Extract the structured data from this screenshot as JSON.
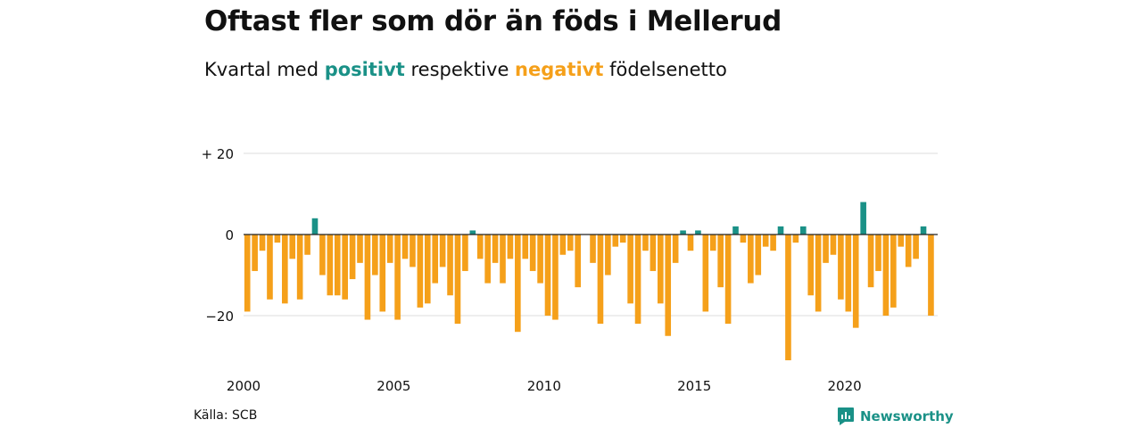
{
  "title": "Oftast fler som dör än föds i Mellerud",
  "subtitle": {
    "part1": "Kvartal med ",
    "positive": "positivt",
    "part2": " respektive ",
    "negative": "negativt",
    "part3": " födelsenetto"
  },
  "source": "Källa: SCB",
  "brand": "Newsworthy",
  "colors": {
    "positive": "#1a9187",
    "negative": "#f5a01a",
    "grid": "#dddddd",
    "zero": "#222222"
  },
  "chart_data": {
    "type": "bar",
    "ylim": [
      -31,
      20
    ],
    "y_ticks": [
      {
        "value": 20,
        "label": "+ 20"
      },
      {
        "value": 0,
        "label": "0"
      },
      {
        "value": -20,
        "label": "−20"
      }
    ],
    "x_ticks": [
      {
        "value": 2000,
        "label": "2000"
      },
      {
        "value": 2005,
        "label": "2005"
      },
      {
        "value": 2010,
        "label": "2010"
      },
      {
        "value": 2015,
        "label": "2015"
      },
      {
        "value": 2020,
        "label": "2020"
      }
    ],
    "grid": true,
    "series": [
      {
        "values": [
          -19,
          -9,
          -4,
          -16,
          -2,
          -17,
          -6,
          -16,
          -5,
          4,
          -10,
          -15,
          -15,
          -16,
          -11,
          -7,
          -21,
          -10,
          -19,
          -7,
          -21,
          -6,
          -8,
          -18,
          -17,
          -12,
          -8,
          -15,
          -22,
          -9,
          1,
          -6,
          -12,
          -7,
          -12,
          -6,
          -24,
          -6,
          -9,
          -12,
          -20,
          -21,
          -5,
          -4,
          -13,
          0,
          -7,
          -22,
          -10,
          -3,
          -2,
          -17,
          -22,
          -4,
          -9,
          -17,
          -25,
          -7,
          1,
          -4,
          1,
          -19,
          -4,
          -13,
          -22,
          2,
          -2,
          -12,
          -10,
          -3,
          -4,
          2,
          -31,
          -2,
          2,
          -15,
          -19,
          -7,
          -5,
          -16,
          -19,
          -23,
          8,
          -13,
          -9,
          -20,
          -18,
          -3,
          -8,
          -6,
          2,
          -20
        ]
      }
    ],
    "x_start": 2000.0,
    "x_step": 0.25
  }
}
